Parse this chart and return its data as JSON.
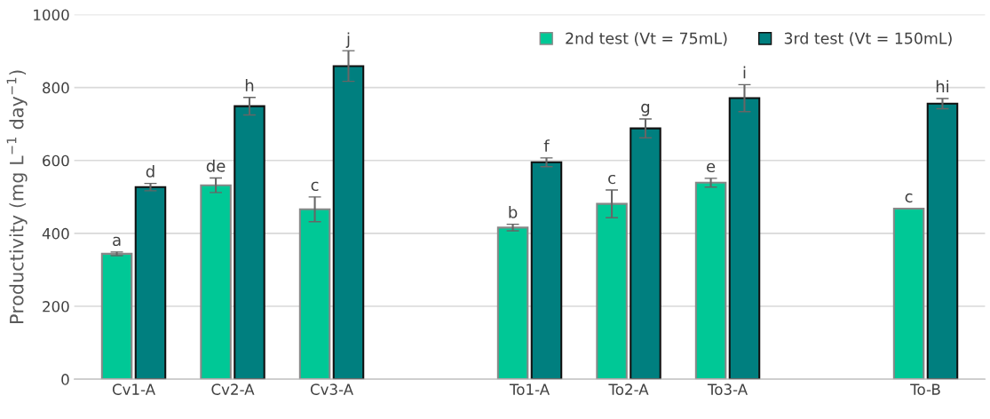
{
  "chart_data": {
    "type": "bar",
    "ylabel": "Productivity (mg L$^{−1}$ day$^{−1}$)",
    "categories": [
      "Cv1-A",
      "Cv2-A",
      "Cv3-A",
      null,
      "To1-A",
      "To2-A",
      "To3-A",
      null,
      "To-B"
    ],
    "series": [
      {
        "name": "2nd test (Vt = 75mL)",
        "color": "#00c896",
        "values": [
          344,
          532,
          466,
          null,
          416,
          481,
          539,
          null,
          468
        ],
        "errors": [
          5,
          20,
          34,
          null,
          9,
          38,
          12,
          null,
          null
        ],
        "value_labels": [
          "a",
          "de",
          "c",
          null,
          "b",
          "c",
          "e",
          null,
          "c"
        ]
      },
      {
        "name": "3rd test (Vt = 150mL)",
        "color": "#007f7f",
        "values": [
          527,
          749,
          859,
          null,
          595,
          688,
          771,
          null,
          756
        ],
        "errors": [
          10,
          24,
          42,
          null,
          12,
          26,
          37,
          null,
          14
        ],
        "value_labels": [
          "d",
          "h",
          "j",
          null,
          "f",
          "g",
          "i",
          null,
          "hi"
        ]
      }
    ],
    "ylim": [
      0,
      1000
    ],
    "yticks": [
      0,
      200,
      400,
      600,
      800,
      1000
    ],
    "grid": "y",
    "legend": "top right"
  }
}
